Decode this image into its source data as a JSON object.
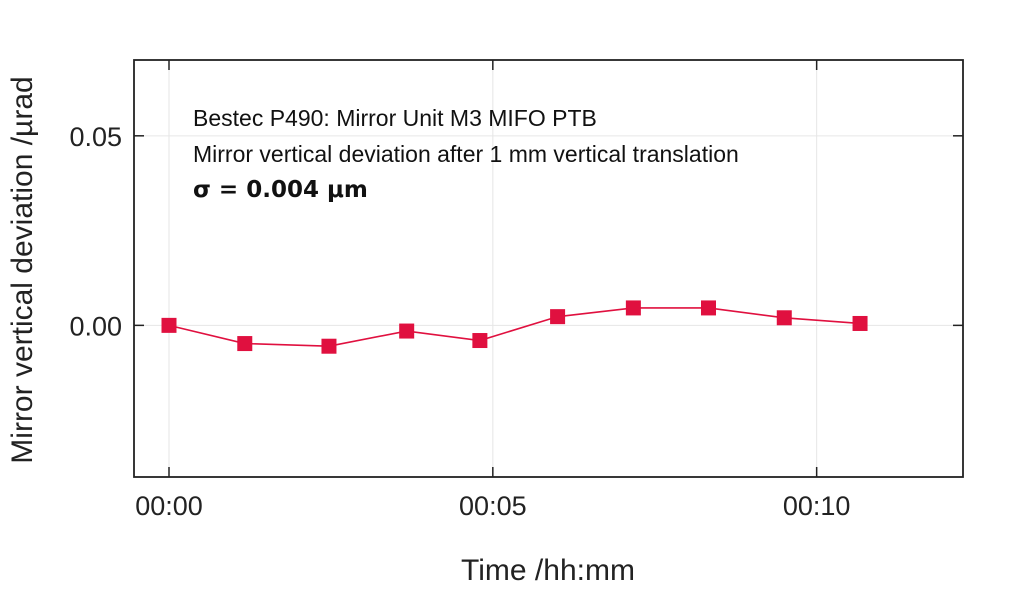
{
  "chart_data": {
    "type": "line",
    "title": "",
    "annotations": [
      "Bestec P490: Mirror Unit M3 MIFO PTB",
      "Mirror vertical deviation after 1 mm vertical translation",
      "σ = 0.004 μm"
    ],
    "xlabel": "Time /hh:mm",
    "ylabel": "Mirror vertical deviation /µrad",
    "x_unit": "minutes",
    "xlim": [
      0,
      12.8
    ],
    "ylim": [
      -0.04,
      0.07
    ],
    "x_ticks": [
      {
        "value": 0,
        "label": "00:00"
      },
      {
        "value": 5,
        "label": "00:05"
      },
      {
        "value": 10,
        "label": "00:10"
      }
    ],
    "y_ticks": [
      {
        "value": 0.0,
        "label": "0.00"
      },
      {
        "value": 0.05,
        "label": "0.05"
      }
    ],
    "grid": true,
    "series": [
      {
        "name": "",
        "color": "#e0103f",
        "marker": "square",
        "x": [
          0.0,
          1.17,
          2.47,
          3.67,
          4.8,
          6.0,
          7.17,
          8.33,
          9.5,
          10.67
        ],
        "y": [
          0.0,
          -0.0048,
          -0.0055,
          -0.0015,
          -0.004,
          0.0023,
          0.0046,
          0.0046,
          0.002,
          0.0005
        ]
      }
    ]
  }
}
